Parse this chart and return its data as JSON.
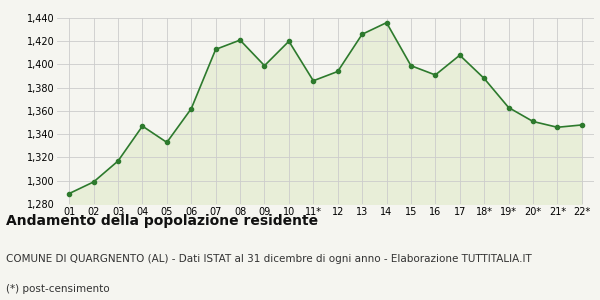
{
  "x_labels": [
    "01",
    "02",
    "03",
    "04",
    "05",
    "06",
    "07",
    "08",
    "09",
    "10",
    "11*",
    "12",
    "13",
    "14",
    "15",
    "16",
    "17",
    "18*",
    "19*",
    "20*",
    "21*",
    "22*"
  ],
  "y_values": [
    1289,
    1299,
    1317,
    1347,
    1333,
    1362,
    1413,
    1421,
    1399,
    1420,
    1386,
    1394,
    1426,
    1436,
    1399,
    1391,
    1408,
    1388,
    1363,
    1351,
    1346,
    1348
  ],
  "line_color": "#2d7a2d",
  "fill_color": "#e8eed8",
  "marker_color": "#2d7a2d",
  "bg_color": "#f5f5f0",
  "plot_bg_color": "#f5f5f0",
  "grid_color": "#cccccc",
  "ylim": [
    1280,
    1440
  ],
  "yticks": [
    1280,
    1300,
    1320,
    1340,
    1360,
    1380,
    1400,
    1420,
    1440
  ],
  "title": "Andamento della popolazione residente",
  "subtitle": "COMUNE DI QUARGNENTO (AL) - Dati ISTAT al 31 dicembre di ogni anno - Elaborazione TUTTITALIA.IT",
  "footnote": "(*) post-censimento",
  "title_fontsize": 10,
  "subtitle_fontsize": 7.5,
  "footnote_fontsize": 7.5,
  "tick_fontsize": 7
}
